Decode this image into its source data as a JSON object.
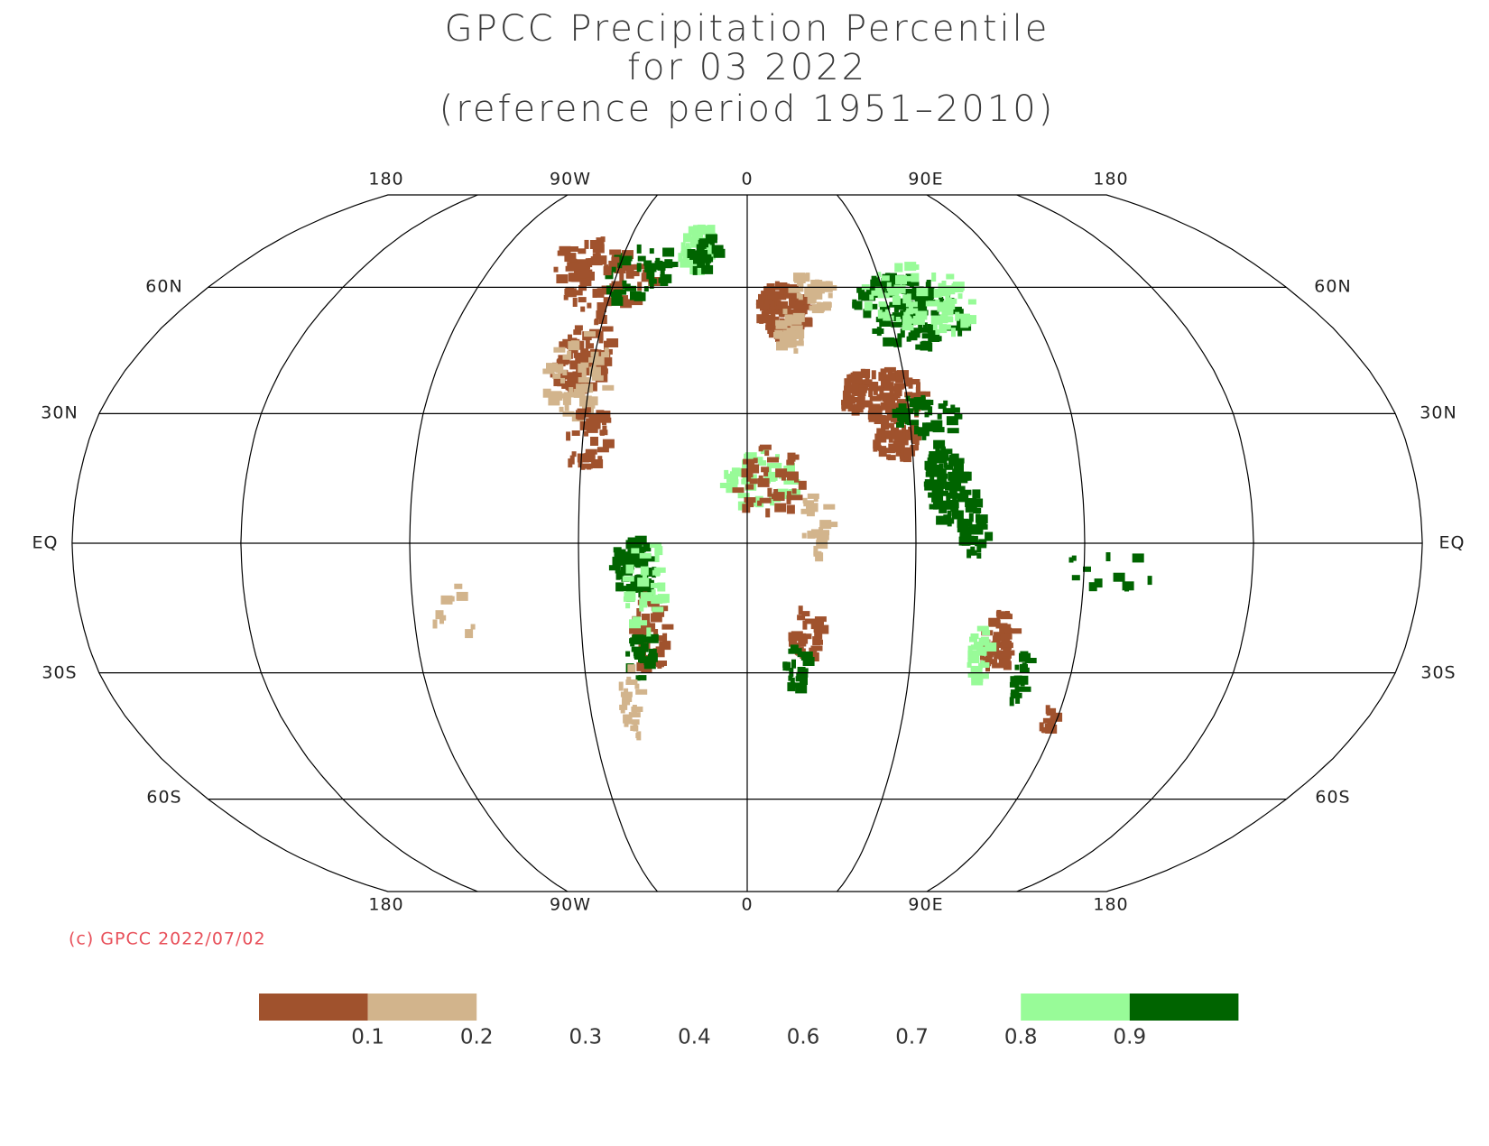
{
  "header": {
    "title": [
      "GPCC Precipitation Percentile",
      "for 03 2022",
      "(reference period 1951–2010)"
    ]
  },
  "map": {
    "lon_labels_top": [
      "180",
      "90W",
      "0",
      "90E",
      "180"
    ],
    "lon_labels_bottom": [
      "180",
      "90W",
      "0",
      "90E",
      "180"
    ],
    "lat_labels_left": [
      "60N",
      "30N",
      "EQ",
      "30S",
      "60S"
    ],
    "lat_labels_right": [
      "60N",
      "30N",
      "EQ",
      "30S",
      "60S"
    ],
    "credit": "(c) GPCC 2022/07/02"
  },
  "legend": {
    "labels": [
      0.1,
      0.2,
      0.3,
      0.4,
      0.6,
      0.7,
      0.8,
      0.9
    ],
    "colors": [
      "#a0522d",
      "#d2b48c",
      null,
      null,
      null,
      null,
      null,
      "#98fb98",
      "#006400"
    ]
  }
}
